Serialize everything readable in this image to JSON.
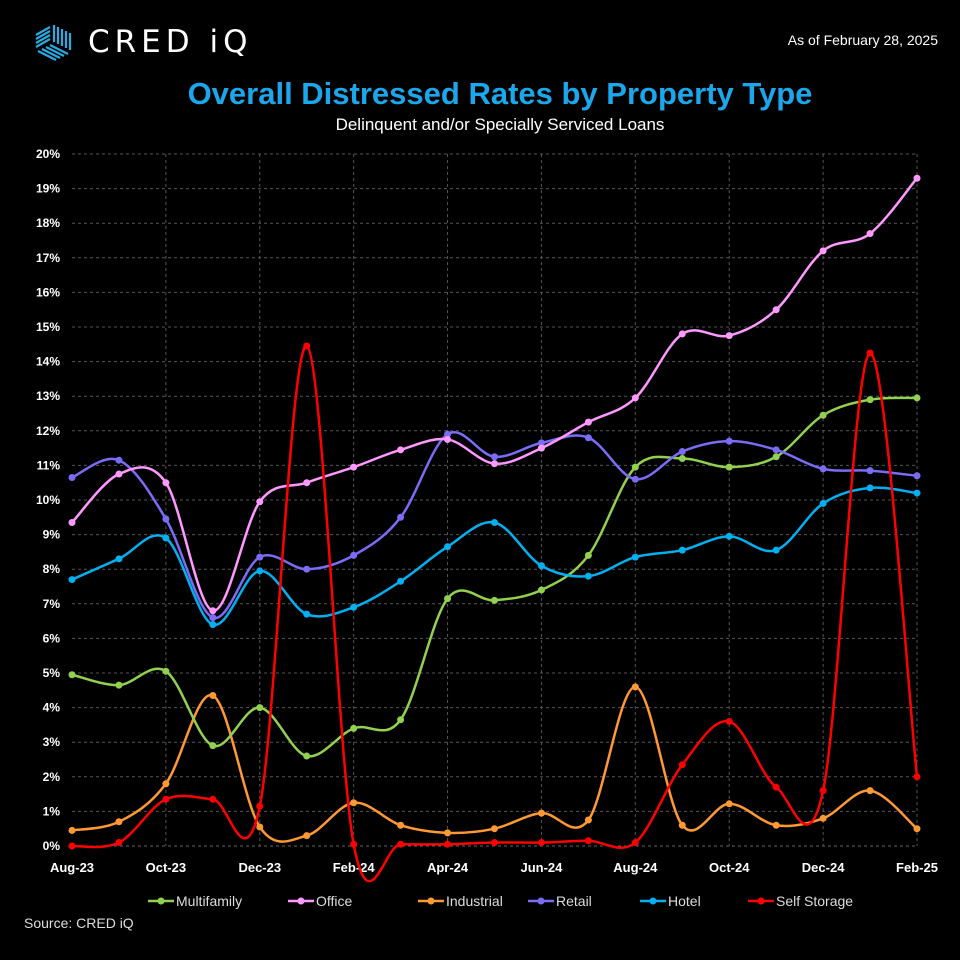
{
  "header": {
    "brand": "CRED iQ",
    "as_of": "As of February 28, 2025"
  },
  "colors": {
    "title": "#1AA7EC",
    "logo": "#29ABE2"
  },
  "chart_data": {
    "type": "line",
    "title": "Overall Distressed Rates by Property Type",
    "subtitle": "Delinquent and/or Specially Serviced Loans",
    "x": [
      "Aug-23",
      "Sep-23",
      "Oct-23",
      "Nov-23",
      "Dec-23",
      "Jan-24",
      "Feb-24",
      "Mar-24",
      "Apr-24",
      "May-24",
      "Jun-24",
      "Jul-24",
      "Aug-24",
      "Sep-24",
      "Oct-24",
      "Nov-24",
      "Dec-24",
      "Jan-25",
      "Feb-25"
    ],
    "x_tick_labels": [
      "Aug-23",
      "Oct-23",
      "Dec-23",
      "Feb-24",
      "Apr-24",
      "Jun-24",
      "Aug-24",
      "Oct-24",
      "Dec-24",
      "Feb-25"
    ],
    "y_tick_labels": [
      "0%",
      "1%",
      "2%",
      "3%",
      "4%",
      "5%",
      "6%",
      "7%",
      "8%",
      "9%",
      "10%",
      "11%",
      "12%",
      "13%",
      "14%",
      "15%",
      "16%",
      "17%",
      "18%",
      "19%",
      "20%"
    ],
    "ylim": [
      0,
      20
    ],
    "y_unit": "%",
    "grid": true,
    "smooth": true,
    "legend_position": "bottom",
    "series": [
      {
        "name": "Multifamily",
        "color": "#92D050",
        "values": [
          4.95,
          4.65,
          5.05,
          2.9,
          4.0,
          2.6,
          3.4,
          3.65,
          7.15,
          7.1,
          7.4,
          8.4,
          10.95,
          11.2,
          10.95,
          11.25,
          12.45,
          12.9,
          12.95
        ]
      },
      {
        "name": "Office",
        "color": "#FF99FF",
        "values": [
          9.35,
          10.75,
          10.5,
          6.8,
          9.95,
          10.5,
          10.95,
          11.45,
          11.75,
          11.05,
          11.5,
          12.25,
          12.95,
          14.8,
          14.75,
          15.5,
          17.2,
          17.7,
          19.3
        ]
      },
      {
        "name": "Industrial",
        "color": "#FF9933",
        "values": [
          0.45,
          0.7,
          1.8,
          4.35,
          0.55,
          0.3,
          1.25,
          0.6,
          0.38,
          0.5,
          0.95,
          0.75,
          4.6,
          0.6,
          1.22,
          0.6,
          0.8,
          1.6,
          0.5
        ]
      },
      {
        "name": "Retail",
        "color": "#7B6CF6",
        "values": [
          10.65,
          11.15,
          9.45,
          6.6,
          8.35,
          8.0,
          8.4,
          9.5,
          11.9,
          11.25,
          11.65,
          11.8,
          10.6,
          11.4,
          11.7,
          11.45,
          10.9,
          10.85,
          10.7
        ]
      },
      {
        "name": "Hotel",
        "color": "#00B0F0",
        "values": [
          7.7,
          8.3,
          8.9,
          6.4,
          7.95,
          6.7,
          6.9,
          7.65,
          8.65,
          9.35,
          8.1,
          7.8,
          8.35,
          8.55,
          8.95,
          8.55,
          9.9,
          10.35,
          10.2
        ]
      },
      {
        "name": "Self Storage",
        "color": "#FF0000",
        "values": [
          0,
          0.1,
          1.35,
          1.35,
          1.15,
          14.45,
          0.05,
          0.05,
          0.05,
          0.1,
          0.1,
          0.15,
          0.1,
          2.35,
          3.6,
          1.7,
          1.6,
          14.25,
          2.0
        ]
      }
    ]
  },
  "footer": {
    "source": "Source:   CRED iQ"
  }
}
